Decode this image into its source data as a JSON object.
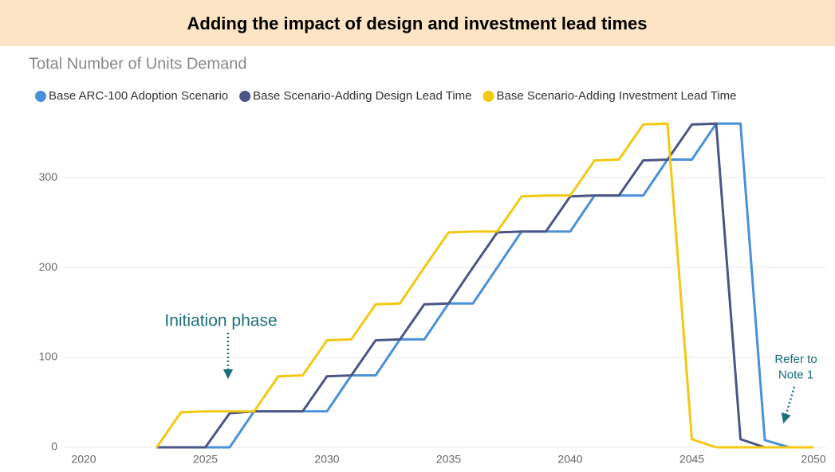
{
  "chart_data": {
    "type": "line",
    "title": "Adding the impact of design and investment lead times",
    "subtitle": "Total Number of Units Demand",
    "x": [
      2023,
      2024,
      2025,
      2026,
      2027,
      2028,
      2029,
      2030,
      2031,
      2032,
      2033,
      2034,
      2035,
      2036,
      2037,
      2038,
      2039,
      2040,
      2041,
      2042,
      2043,
      2044,
      2045,
      2046,
      2047,
      2048,
      2049,
      2050
    ],
    "series": [
      {
        "name": "Base ARC-100 Adoption Scenario",
        "color": "#4a90d9",
        "values": [
          0,
          0,
          0,
          0,
          40,
          40,
          40,
          40,
          80,
          80,
          120,
          120,
          160,
          160,
          200,
          240,
          240,
          240,
          280,
          280,
          280,
          320,
          320,
          360,
          360,
          8,
          0,
          0
        ]
      },
      {
        "name": "Base Scenario-Adding Design Lead Time",
        "color": "#4b5586",
        "values": [
          0,
          0,
          0,
          38,
          40,
          40,
          40,
          79,
          80,
          119,
          120,
          159,
          160,
          200,
          239,
          240,
          240,
          279,
          280,
          280,
          319,
          320,
          359,
          360,
          9,
          0,
          0,
          0
        ]
      },
      {
        "name": "Base Scenario-Adding Investment Lead Time",
        "color": "#f2c811",
        "values": [
          0,
          39,
          40,
          40,
          40,
          79,
          80,
          119,
          120,
          159,
          160,
          200,
          239,
          240,
          240,
          279,
          280,
          280,
          319,
          320,
          359,
          360,
          9,
          0,
          0,
          0,
          0,
          0
        ]
      }
    ],
    "xlim": [
      2020,
      2050
    ],
    "xticks": [
      2020,
      2025,
      2030,
      2035,
      2040,
      2045,
      2050
    ],
    "ylim": [
      0,
      370
    ],
    "yticks": [
      0,
      100,
      200,
      300
    ],
    "grid": true,
    "legend": "top",
    "annotations": [
      {
        "text": [
          "Initiation phase"
        ],
        "color": "#1a6f7a"
      },
      {
        "text": [
          "Refer to",
          "Note 1"
        ],
        "color": "#1a6f7a"
      }
    ]
  }
}
